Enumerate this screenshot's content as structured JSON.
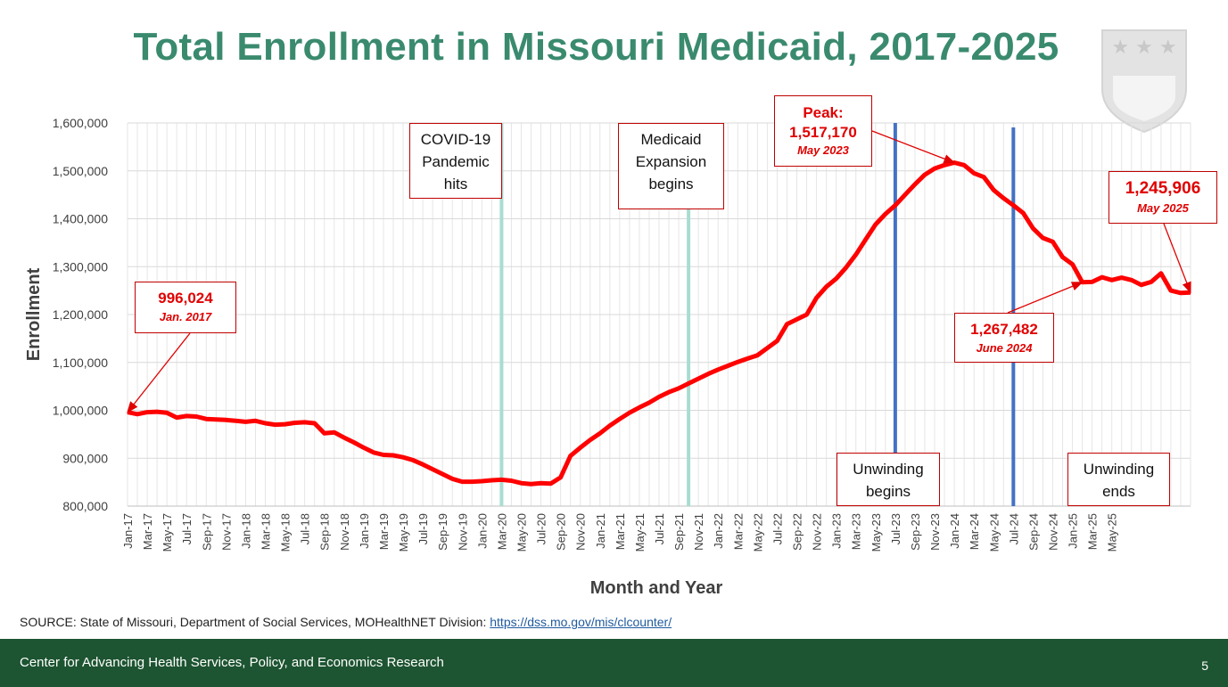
{
  "slide": {
    "title": "Total Enrollment in Missouri Medicaid, 2017-2025",
    "source_label": "SOURCE: State of Missouri, Department of Social Services, MOHealthNET Division:",
    "source_link": "https://dss.mo.gov/mis/clcounter/",
    "footer_org": "Center for Advancing Health Services, Policy, and Economics Research",
    "page_number": "5",
    "colors": {
      "title": "#3a8a6e",
      "footer_bg": "#1d5431",
      "line": "#ff0000",
      "covid_line": "#a8ddd0",
      "unwinding_line": "#4472c4",
      "annotation_red": "#e00000"
    }
  },
  "annotations": {
    "covid": {
      "line1": "COVID-19",
      "line2": "Pandemic",
      "line3": "hits"
    },
    "expansion": {
      "line1": "Medicaid",
      "line2": "Expansion",
      "line3": "begins"
    },
    "peak": {
      "label": "Peak:",
      "value": "1,517,170",
      "date": "May 2023"
    },
    "start": {
      "value": "996,024",
      "date": "Jan. 2017"
    },
    "june24": {
      "value": "1,267,482",
      "date": "June 2024"
    },
    "may25": {
      "value": "1,245,906",
      "date": "May 2025"
    },
    "unwind_begin": {
      "line1": "Unwinding",
      "line2": "begins"
    },
    "unwind_end": {
      "line1": "Unwinding",
      "line2": "ends"
    }
  },
  "chart_data": {
    "type": "line",
    "xlabel": "Month and Year",
    "ylabel": "Enrollment",
    "ylim": [
      800000,
      1600000
    ],
    "yticks": [
      "800,000",
      "900,000",
      "1,000,000",
      "1,100,000",
      "1,200,000",
      "1,300,000",
      "1,400,000",
      "1,500,000",
      "1,600,000"
    ],
    "grid": true,
    "x_tick_labels": [
      "Jan-17",
      "Mar-17",
      "May-17",
      "Jul-17",
      "Sep-17",
      "Nov-17",
      "Jan-18",
      "Mar-18",
      "May-18",
      "Jul-18",
      "Sep-18",
      "Nov-18",
      "Jan-19",
      "Mar-19",
      "May-19",
      "Jul-19",
      "Sep-19",
      "Nov-19",
      "Jan-20",
      "Mar-20",
      "May-20",
      "Jul-20",
      "Sep-20",
      "Nov-20",
      "Jan-21",
      "Mar-21",
      "May-21",
      "Jul-21",
      "Sep-21",
      "Nov-21",
      "Jan-22",
      "Mar-22",
      "May-22",
      "Jul-22",
      "Sep-22",
      "Nov-22",
      "Jan-23",
      "Mar-23",
      "May-23",
      "Jul-23",
      "Sep-23",
      "Nov-23",
      "Jan-24",
      "Mar-24",
      "May-24",
      "Jul-24",
      "Sep-24",
      "Nov-24",
      "Jan-25",
      "Mar-25",
      "May-25"
    ],
    "series": [
      {
        "values": [
          996024,
          992000,
          996000,
          997000,
          995000,
          985000,
          988000,
          987000,
          982000,
          981000,
          980000,
          978000,
          976000,
          978000,
          973000,
          970000,
          971000,
          974000,
          975000,
          973000,
          952000,
          954000,
          943000,
          933000,
          922000,
          912000,
          907000,
          906000,
          902000,
          896000,
          887000,
          877000,
          867000,
          857000,
          851000,
          851000,
          852000,
          854000,
          855000,
          853000,
          848000,
          846000,
          848000,
          847000,
          860000,
          905000,
          922000,
          938000,
          952000,
          968000,
          982000,
          995000,
          1006000,
          1016000,
          1028000,
          1038000,
          1046000,
          1056000,
          1066000,
          1076000,
          1085000,
          1093000,
          1101000,
          1108000,
          1115000,
          1130000,
          1145000,
          1180000,
          1190000,
          1200000,
          1235000,
          1258000,
          1275000,
          1298000,
          1325000,
          1357000,
          1388000,
          1410000,
          1428000,
          1450000,
          1472000,
          1492000,
          1505000,
          1512000,
          1517170,
          1512000,
          1495000,
          1487000,
          1460000,
          1443000,
          1428000,
          1412000,
          1380000,
          1360000,
          1352000,
          1320000,
          1305000,
          1267482,
          1268000,
          1278000,
          1272000,
          1277000,
          1272000,
          1262000,
          1268000,
          1286000,
          1250000,
          1245000,
          1245906
        ]
      }
    ],
    "events": [
      {
        "label": "COVID-19 Pandemic hits",
        "x_index": 38
      },
      {
        "label": "Medicaid Expansion begins",
        "x_index": 57
      },
      {
        "label": "Unwinding begins",
        "x_index": 78
      },
      {
        "label": "Unwinding ends",
        "x_index": 90
      }
    ]
  }
}
